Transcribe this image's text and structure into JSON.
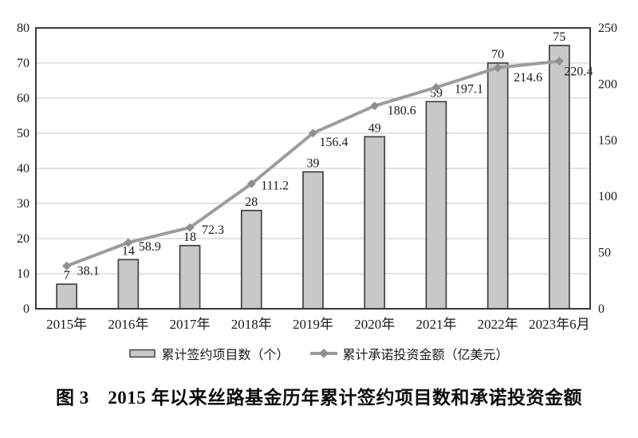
{
  "figure": {
    "caption": "图 3　2015 年以来丝路基金历年累计签约项目数和承诺投资金额"
  },
  "chart_data": {
    "type": "combo",
    "categories": [
      "2015年",
      "2016年",
      "2017年",
      "2018年",
      "2019年",
      "2020年",
      "2021年",
      "2022年",
      "2023年6月"
    ],
    "series": [
      {
        "name": "累计签约项目数（个）",
        "type": "bar",
        "axis": "left",
        "values": [
          7,
          14,
          18,
          28,
          39,
          49,
          59,
          70,
          75
        ]
      },
      {
        "name": "累计承诺投资金额（亿美元）",
        "type": "line",
        "axis": "right",
        "values": [
          38.1,
          58.9,
          72.3,
          111.2,
          156.4,
          180.6,
          197.1,
          214.6,
          220.4
        ]
      }
    ],
    "left_axis": {
      "min": 0,
      "max": 80,
      "ticks": [
        0,
        10,
        20,
        30,
        40,
        50,
        60,
        70,
        80
      ]
    },
    "right_axis": {
      "min": 0,
      "max": 250,
      "ticks": [
        0,
        50,
        100,
        150,
        200,
        250
      ]
    },
    "grid": "horizontal-left-ticks",
    "legend_position": "bottom",
    "colors": {
      "bar_fill": "#c7c8c9",
      "bar_border": "#424242",
      "line": "#9c9c9c",
      "marker": "#8f8f8f",
      "grid": "#d2d2d2",
      "plot_border": "#3a3a3a",
      "text": "#1a1a1a"
    }
  }
}
